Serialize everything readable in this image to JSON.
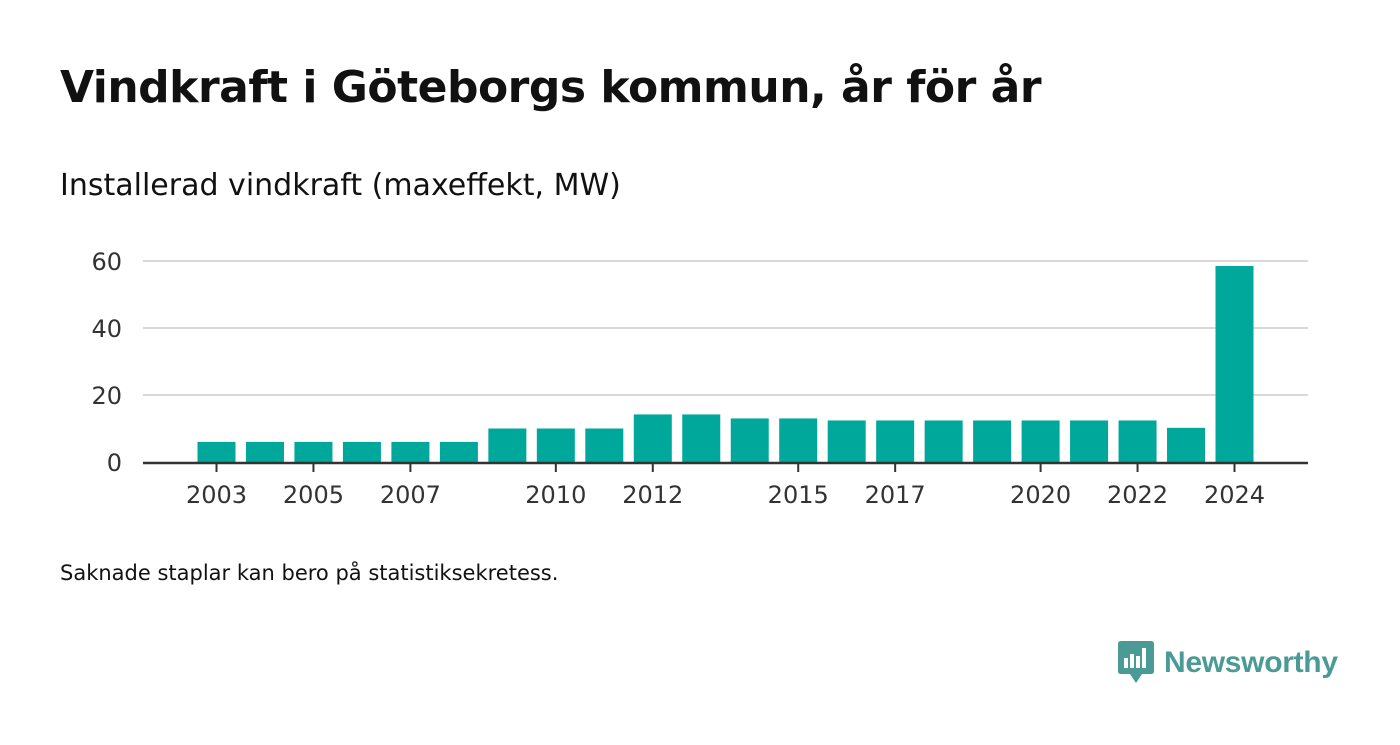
{
  "title": "Vindkraft i Göteborgs kommun, år för år",
  "subtitle": "Installerad vindkraft (maxeffekt, MW)",
  "footnote": "Saknade staplar kan bero på statistiksekretess.",
  "brand": {
    "name": "Newsworthy",
    "color": "#4a9a95",
    "icon": "newsworthy-logo-icon"
  },
  "colors": {
    "bar": "#00a79b",
    "grid": "#d9d9d9",
    "axis": "#333333",
    "tick_text": "#333333"
  },
  "chart_data": {
    "type": "bar",
    "title": "Installerad vindkraft (maxeffekt, MW)",
    "categories": [
      "2003",
      "2004",
      "2005",
      "2006",
      "2007",
      "2008",
      "2009",
      "2010",
      "2011",
      "2012",
      "2013",
      "2014",
      "2015",
      "2016",
      "2017",
      "2018",
      "2019",
      "2020",
      "2021",
      "2022",
      "2023",
      "2024"
    ],
    "values": [
      6,
      6,
      6,
      6,
      6,
      6,
      10,
      10,
      10,
      14.2,
      14.2,
      13,
      13,
      12.4,
      12.4,
      12.4,
      12.4,
      12.4,
      12.4,
      12.4,
      10.2,
      58.5
    ],
    "x_tick_labels": [
      "2003",
      "2005",
      "2007",
      "2010",
      "2012",
      "2015",
      "2017",
      "2020",
      "2022",
      "2024"
    ],
    "y_ticks": [
      0,
      20,
      40,
      60
    ],
    "ylim": [
      0,
      60
    ],
    "grid": true,
    "xlabel": "",
    "ylabel": ""
  }
}
